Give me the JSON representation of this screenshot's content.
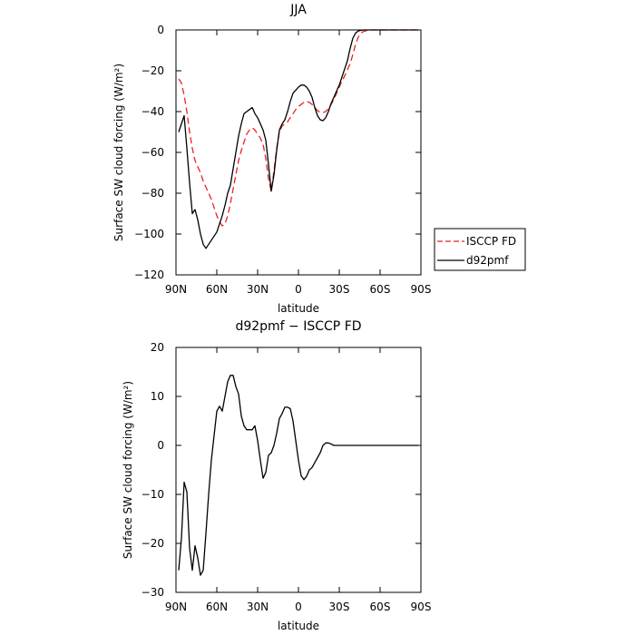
{
  "chart_data": [
    {
      "type": "line",
      "title": "JJA",
      "xlabel": "latitude",
      "ylabel": "Surface SW cloud forcing (W/m²)",
      "xlim": [
        90,
        -90
      ],
      "ylim": [
        -120,
        0
      ],
      "x_ticks": [
        90,
        60,
        30,
        0,
        -30,
        -60,
        -90
      ],
      "x_tick_labels": [
        "90N",
        "60N",
        "30N",
        "0",
        "30S",
        "60S",
        "90S"
      ],
      "y_ticks": [
        0,
        -20,
        -40,
        -60,
        -80,
        -100,
        -120
      ],
      "y_tick_labels": [
        "0",
        "−20",
        "−40",
        "−60",
        "−80",
        "−100",
        "−120"
      ],
      "legend_position": "right",
      "series": [
        {
          "name": "ISCCP FD",
          "color": "#e8231f",
          "dash": "dashed",
          "x": [
            88,
            86,
            84,
            82,
            80,
            78,
            76,
            74,
            72,
            70,
            68,
            66,
            64,
            62,
            60,
            58,
            56,
            54,
            52,
            50,
            48,
            46,
            44,
            42,
            40,
            38,
            36,
            34,
            32,
            30,
            28,
            26,
            24,
            22,
            20,
            18,
            16,
            14,
            12,
            10,
            8,
            6,
            4,
            2,
            0,
            -2,
            -4,
            -6,
            -8,
            -10,
            -12,
            -14,
            -16,
            -18,
            -20,
            -22,
            -24,
            -26,
            -28,
            -30,
            -32,
            -34,
            -36,
            -38,
            -40,
            -42,
            -44,
            -46,
            -48,
            -50,
            -52,
            -54,
            -56,
            -58,
            -60,
            -62,
            -64,
            -66,
            -68,
            -70,
            -72,
            -74,
            -76,
            -78,
            -80,
            -82,
            -84,
            -86,
            -88
          ],
          "values": [
            -24,
            -26,
            -32,
            -40,
            -50,
            -58,
            -64,
            -67,
            -70,
            -74,
            -77,
            -80,
            -83,
            -87,
            -91,
            -94,
            -96,
            -95,
            -91,
            -85,
            -78,
            -71,
            -64,
            -59,
            -55,
            -51,
            -49,
            -48,
            -49,
            -51,
            -53,
            -56,
            -63,
            -73,
            -79,
            -69,
            -58,
            -50,
            -47,
            -46,
            -45,
            -43,
            -41,
            -39,
            -37.5,
            -36.5,
            -35.5,
            -35,
            -35.5,
            -36.5,
            -38,
            -39.5,
            -40.5,
            -40.5,
            -40,
            -38.5,
            -36.5,
            -34,
            -31,
            -28,
            -25,
            -22.5,
            -19.5,
            -16.5,
            -12,
            -7,
            -3.5,
            -1.5,
            -0.7,
            -0.3,
            -0.1,
            0,
            0,
            0,
            0,
            0,
            0,
            0,
            0,
            0,
            0,
            0,
            0,
            0,
            0,
            0,
            0,
            0,
            0
          ]
        },
        {
          "name": "d92pmf",
          "color": "#000000",
          "dash": "solid",
          "x": [
            88,
            86,
            84,
            82,
            80,
            78,
            76,
            74,
            72,
            70,
            68,
            66,
            64,
            62,
            60,
            58,
            56,
            54,
            52,
            50,
            48,
            46,
            44,
            42,
            40,
            38,
            36,
            34,
            32,
            30,
            28,
            26,
            24,
            22,
            20,
            18,
            16,
            14,
            12,
            10,
            8,
            6,
            4,
            2,
            0,
            -2,
            -4,
            -6,
            -8,
            -10,
            -12,
            -14,
            -16,
            -18,
            -20,
            -22,
            -24,
            -26,
            -28,
            -30,
            -32,
            -34,
            -36,
            -38,
            -40,
            -42,
            -44,
            -46,
            -48,
            -50,
            -52,
            -54,
            -56,
            -58,
            -60,
            -62,
            -64,
            -66,
            -68,
            -70,
            -72,
            -74,
            -76,
            -78,
            -80,
            -82,
            -84,
            -86,
            -88
          ],
          "values": [
            -50,
            -46,
            -42,
            -58,
            -75,
            -90,
            -88,
            -93,
            -100,
            -105,
            -107,
            -105,
            -103,
            -101,
            -99,
            -95,
            -91,
            -86,
            -80,
            -76,
            -68,
            -60,
            -52,
            -46,
            -41,
            -40,
            -39,
            -38,
            -41,
            -43,
            -46,
            -49,
            -54,
            -66,
            -79,
            -71,
            -59,
            -49,
            -46,
            -44,
            -40,
            -35,
            -31,
            -29.5,
            -28,
            -27,
            -27,
            -28,
            -30,
            -33,
            -38,
            -42,
            -44,
            -44.5,
            -43,
            -40,
            -36,
            -33,
            -30,
            -27,
            -23,
            -19,
            -15,
            -9,
            -4,
            -1.5,
            -0.5,
            -0.2,
            0,
            0,
            0,
            0,
            0,
            0,
            0,
            0,
            0,
            0,
            0,
            0,
            0,
            0,
            0,
            0,
            0,
            0,
            0,
            0,
            0
          ]
        }
      ]
    },
    {
      "type": "line",
      "title": "d92pmf − ISCCP FD",
      "xlabel": "latitude",
      "ylabel": "Surface SW cloud forcing (W/m²)",
      "xlim": [
        90,
        -90
      ],
      "ylim": [
        -30,
        20
      ],
      "x_ticks": [
        90,
        60,
        30,
        0,
        -30,
        -60,
        -90
      ],
      "x_tick_labels": [
        "90N",
        "60N",
        "30N",
        "0",
        "30S",
        "60S",
        "90S"
      ],
      "y_ticks": [
        20,
        10,
        0,
        -10,
        -20,
        -30
      ],
      "y_tick_labels": [
        "20",
        "10",
        "0",
        "−10",
        "−20",
        "−30"
      ],
      "series": [
        {
          "color": "#000000",
          "dash": "solid",
          "x": [
            88,
            86,
            84,
            82,
            80,
            78,
            76,
            74,
            72,
            70,
            68,
            66,
            64,
            62,
            60,
            58,
            56,
            54,
            52,
            50,
            48,
            46,
            44,
            42,
            40,
            38,
            36,
            34,
            32,
            30,
            28,
            26,
            24,
            22,
            20,
            18,
            16,
            14,
            12,
            10,
            8,
            6,
            4,
            2,
            0,
            -2,
            -4,
            -6,
            -8,
            -10,
            -12,
            -14,
            -16,
            -18,
            -20,
            -22,
            -24,
            -26,
            -28,
            -30,
            -32,
            -34,
            -36,
            -38,
            -40,
            -42,
            -44,
            -46,
            -48,
            -50,
            -52,
            -54,
            -56,
            -58,
            -60,
            -62,
            -64,
            -66,
            -68,
            -70,
            -72,
            -74,
            -76,
            -78,
            -80,
            -82,
            -84,
            -86,
            -88
          ],
          "values": [
            -25.5,
            -19,
            -7.5,
            -9.5,
            -21,
            -25.5,
            -20.5,
            -23,
            -26.5,
            -25.5,
            -18,
            -10,
            -3,
            2,
            7,
            8,
            7,
            10,
            13,
            14.3,
            14.3,
            12,
            10.5,
            6,
            4,
            3.2,
            3.2,
            3.2,
            4,
            1,
            -3,
            -6.7,
            -5.5,
            -2,
            -1.5,
            0,
            2.5,
            5.5,
            6.5,
            7.8,
            7.8,
            7.5,
            5,
            1,
            -3,
            -6.2,
            -7,
            -6.3,
            -5,
            -4.5,
            -3.5,
            -2.5,
            -1.5,
            0,
            0.5,
            0.5,
            0.3,
            0,
            0,
            0,
            0,
            0,
            0,
            0,
            0,
            0,
            0,
            0,
            0,
            0,
            0,
            0,
            0,
            0,
            0,
            0,
            0,
            0,
            0,
            0,
            0,
            0,
            0,
            0,
            0,
            0,
            0,
            0,
            0
          ]
        }
      ]
    }
  ]
}
